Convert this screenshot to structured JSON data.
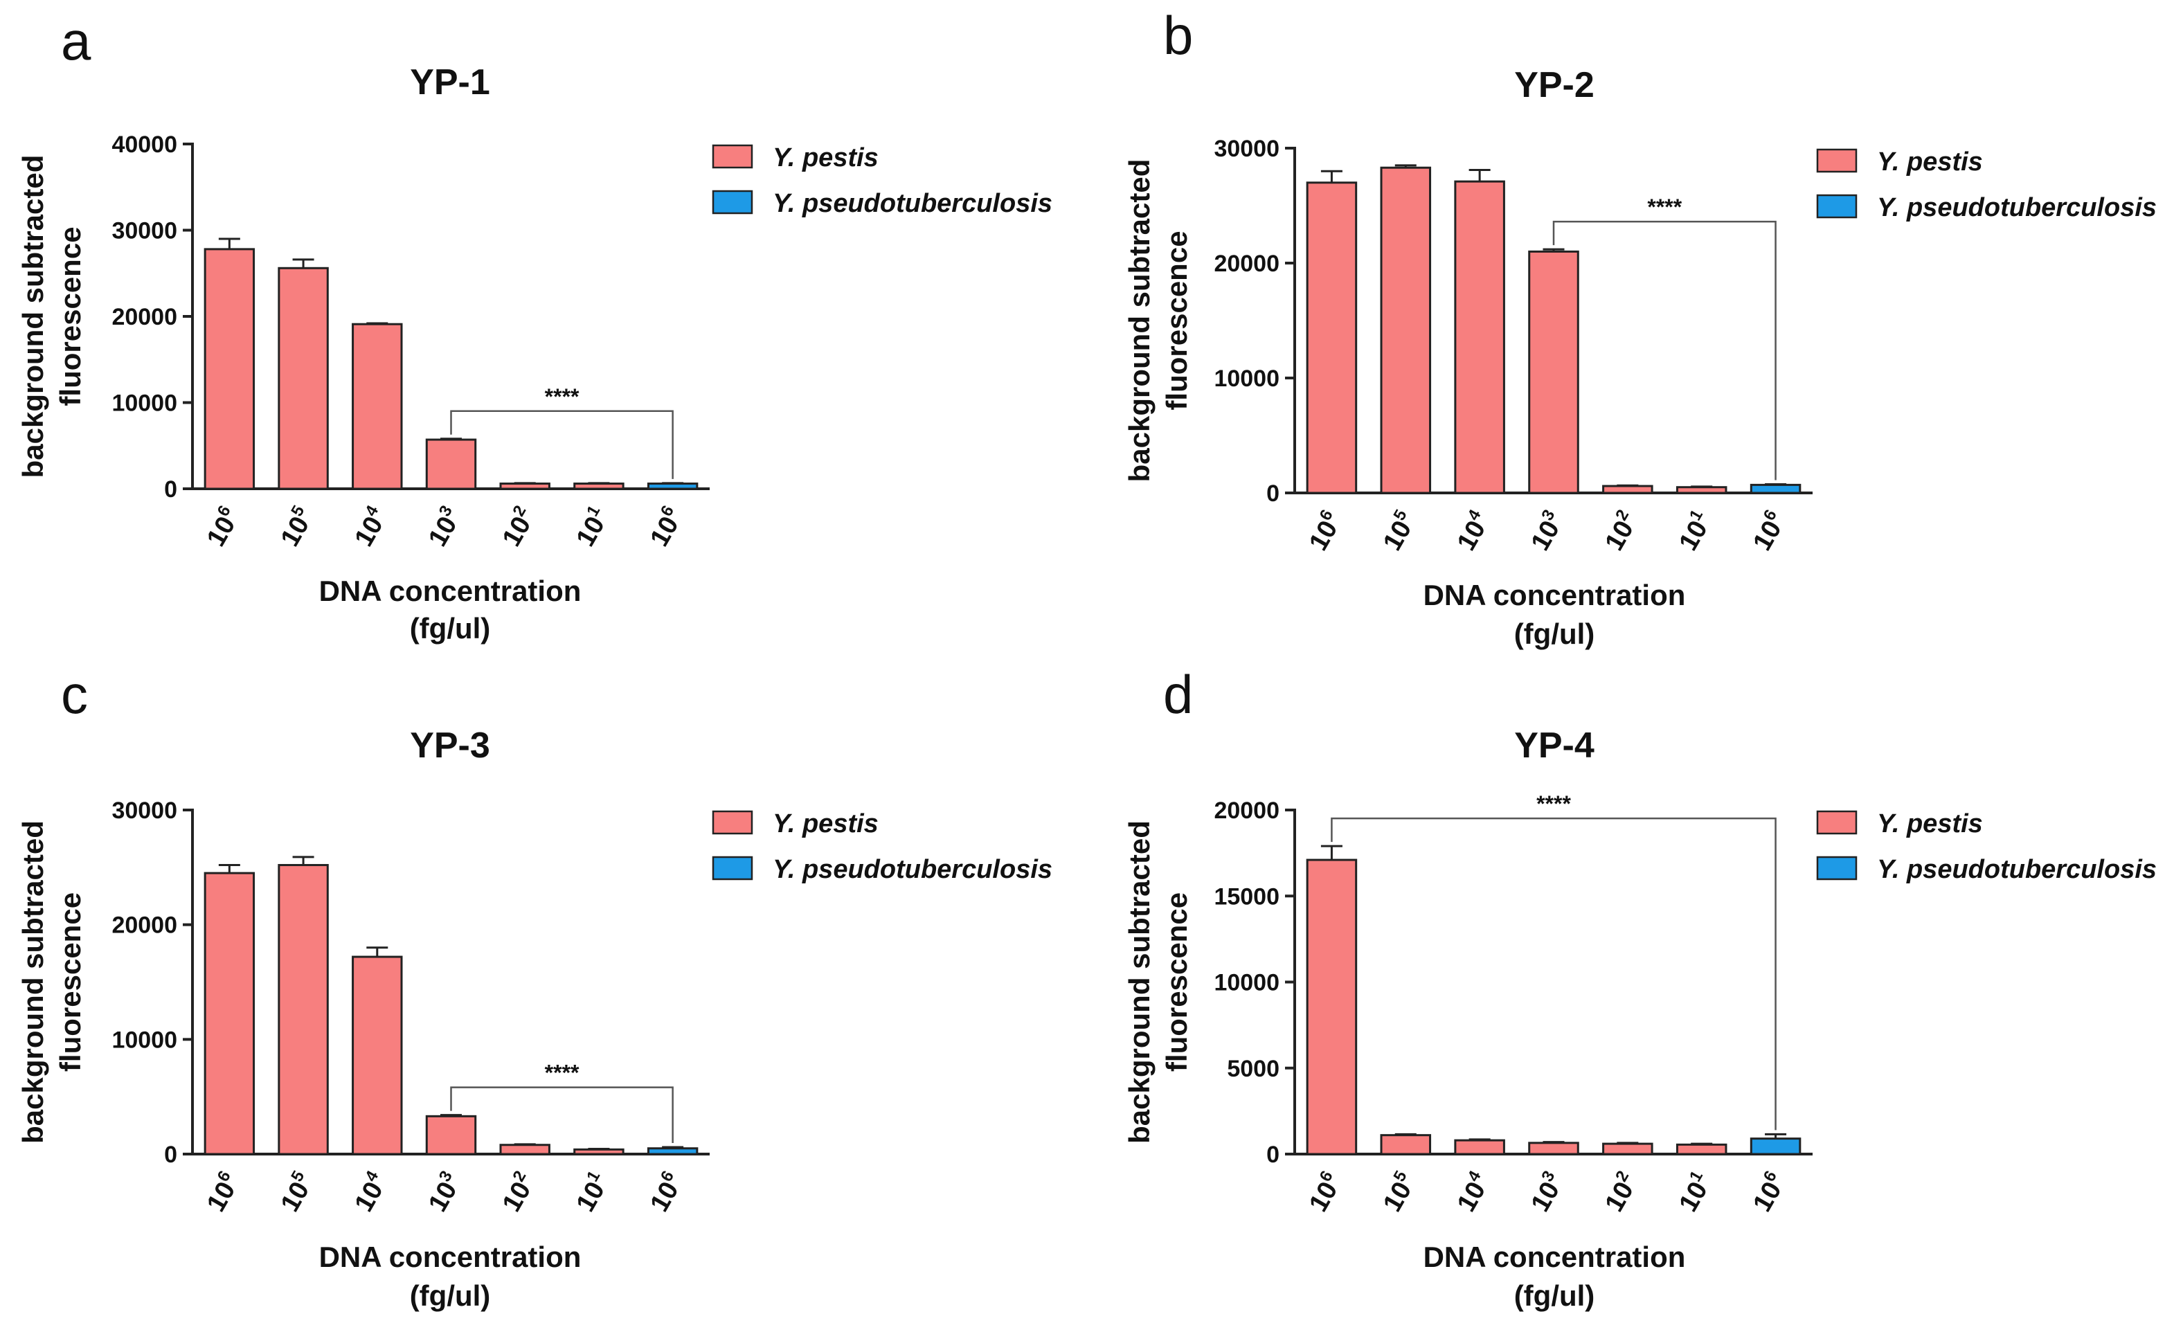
{
  "figure": {
    "x_axis_label_line1": "DNA concentration",
    "x_axis_label_line2": "(fg/ul)",
    "y_axis_label_line1": "background subtracted",
    "y_axis_label_line2": "fluorescence"
  },
  "colors": {
    "y_pestis": "#F77F7F",
    "y_pseudotuberculosis": "#1E9AE6",
    "outline": "#222222",
    "axis": "#222222"
  },
  "legend": [
    {
      "name": "Y. pestis",
      "color": "#F77F7F"
    },
    {
      "name": "Y. pseudotuberculosis",
      "color": "#1E9AE6"
    }
  ],
  "chart_data": [
    {
      "panel": "a",
      "title": "YP-1",
      "type": "bar",
      "categories": [
        {
          "base": "10",
          "exp": "6"
        },
        {
          "base": "10",
          "exp": "5"
        },
        {
          "base": "10",
          "exp": "4"
        },
        {
          "base": "10",
          "exp": "3"
        },
        {
          "base": "10",
          "exp": "2"
        },
        {
          "base": "10",
          "exp": "1"
        },
        {
          "base": "10",
          "exp": "6"
        }
      ],
      "values": [
        27800,
        25600,
        19100,
        5700,
        600,
        600,
        600
      ],
      "errors": [
        1200,
        1000,
        100,
        100,
        50,
        50,
        50
      ],
      "series_index": [
        0,
        0,
        0,
        0,
        0,
        0,
        1
      ],
      "ylim": [
        0,
        40000
      ],
      "yticks": [
        0,
        10000,
        20000,
        30000,
        40000
      ],
      "significance": {
        "from": 3,
        "to": 6,
        "label": "****"
      }
    },
    {
      "panel": "b",
      "title": "YP-2",
      "type": "bar",
      "categories": [
        {
          "base": "10",
          "exp": "6"
        },
        {
          "base": "10",
          "exp": "5"
        },
        {
          "base": "10",
          "exp": "4"
        },
        {
          "base": "10",
          "exp": "3"
        },
        {
          "base": "10",
          "exp": "2"
        },
        {
          "base": "10",
          "exp": "1"
        },
        {
          "base": "10",
          "exp": "6"
        }
      ],
      "values": [
        27000,
        28300,
        27100,
        21000,
        600,
        500,
        700
      ],
      "errors": [
        1000,
        200,
        1000,
        200,
        50,
        50,
        50
      ],
      "series_index": [
        0,
        0,
        0,
        0,
        0,
        0,
        1
      ],
      "ylim": [
        0,
        30000
      ],
      "yticks": [
        0,
        10000,
        20000,
        30000
      ],
      "significance": {
        "from": 3,
        "to": 6,
        "label": "****"
      }
    },
    {
      "panel": "c",
      "title": "YP-3",
      "type": "bar",
      "categories": [
        {
          "base": "10",
          "exp": "6"
        },
        {
          "base": "10",
          "exp": "5"
        },
        {
          "base": "10",
          "exp": "4"
        },
        {
          "base": "10",
          "exp": "3"
        },
        {
          "base": "10",
          "exp": "2"
        },
        {
          "base": "10",
          "exp": "1"
        },
        {
          "base": "10",
          "exp": "6"
        }
      ],
      "values": [
        24500,
        25200,
        17200,
        3300,
        800,
        400,
        500
      ],
      "errors": [
        700,
        700,
        800,
        100,
        50,
        50,
        100
      ],
      "series_index": [
        0,
        0,
        0,
        0,
        0,
        0,
        1
      ],
      "ylim": [
        0,
        30000
      ],
      "yticks": [
        0,
        10000,
        20000,
        30000
      ],
      "significance": {
        "from": 3,
        "to": 6,
        "label": "****"
      }
    },
    {
      "panel": "d",
      "title": "YP-4",
      "type": "bar",
      "categories": [
        {
          "base": "10",
          "exp": "6"
        },
        {
          "base": "10",
          "exp": "5"
        },
        {
          "base": "10",
          "exp": "4"
        },
        {
          "base": "10",
          "exp": "3"
        },
        {
          "base": "10",
          "exp": "2"
        },
        {
          "base": "10",
          "exp": "1"
        },
        {
          "base": "10",
          "exp": "6"
        }
      ],
      "values": [
        17100,
        1100,
        800,
        650,
        600,
        550,
        900
      ],
      "errors": [
        800,
        50,
        50,
        50,
        50,
        50,
        250
      ],
      "series_index": [
        0,
        0,
        0,
        0,
        0,
        0,
        1
      ],
      "ylim": [
        0,
        20000
      ],
      "yticks": [
        0,
        5000,
        10000,
        15000,
        20000
      ],
      "significance": {
        "from": 0,
        "to": 6,
        "label": "****"
      }
    }
  ]
}
